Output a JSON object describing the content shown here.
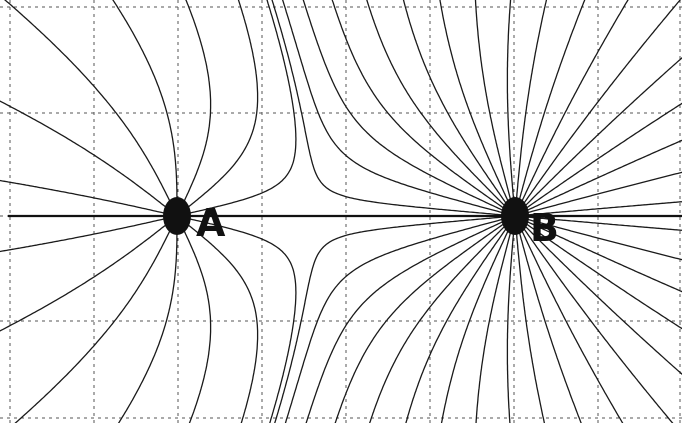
{
  "charges": [
    {
      "id": "A",
      "label": "A",
      "strength": 1
    },
    {
      "id": "B",
      "label": "B",
      "strength": 2.4
    }
  ],
  "colors": {
    "background": "#ffffff",
    "field_line": "#1a1a1a",
    "grid": "#555555",
    "charge": "#111111"
  },
  "grid": {
    "style": "dashed",
    "visible": true
  },
  "field_line_counts": {
    "A": 14,
    "B": 36
  }
}
